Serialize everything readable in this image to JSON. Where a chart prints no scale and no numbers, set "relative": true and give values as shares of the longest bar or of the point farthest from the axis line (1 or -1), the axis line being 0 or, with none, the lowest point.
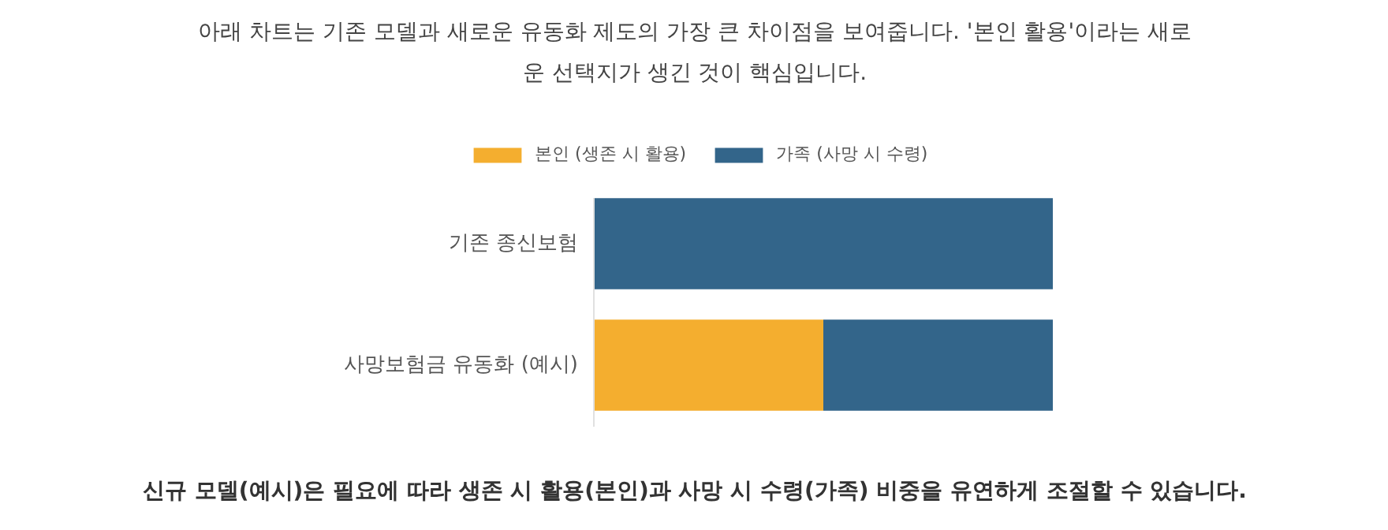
{
  "chart_data": {
    "type": "bar",
    "orientation": "horizontal",
    "stacked": true,
    "relative": true,
    "title": "아래 차트는 기존 모델과 새로운 유동화 제도의 가장 큰 차이점을 보여줍니다. '본인 활용'이라는 새로운 선택지가 생긴 것이 핵심입니다.",
    "annotations": [
      "신규 모델(예시)은 필요에 따라 생존 시 활용(본인)과 사망 시 수령(가족) 비중을 유연하게 조절할 수 있습니다."
    ],
    "categories": [
      "기존 종신보험",
      "사망보험금 유동화 (예시)"
    ],
    "series": [
      {
        "name": "본인 (생존 시 활용)",
        "color": "#f4ae2f",
        "values": [
          0,
          0.5
        ]
      },
      {
        "name": "가족 (사망 시 수령)",
        "color": "#33658a",
        "values": [
          1,
          0.5
        ]
      }
    ],
    "legend": "top",
    "grid": false
  }
}
